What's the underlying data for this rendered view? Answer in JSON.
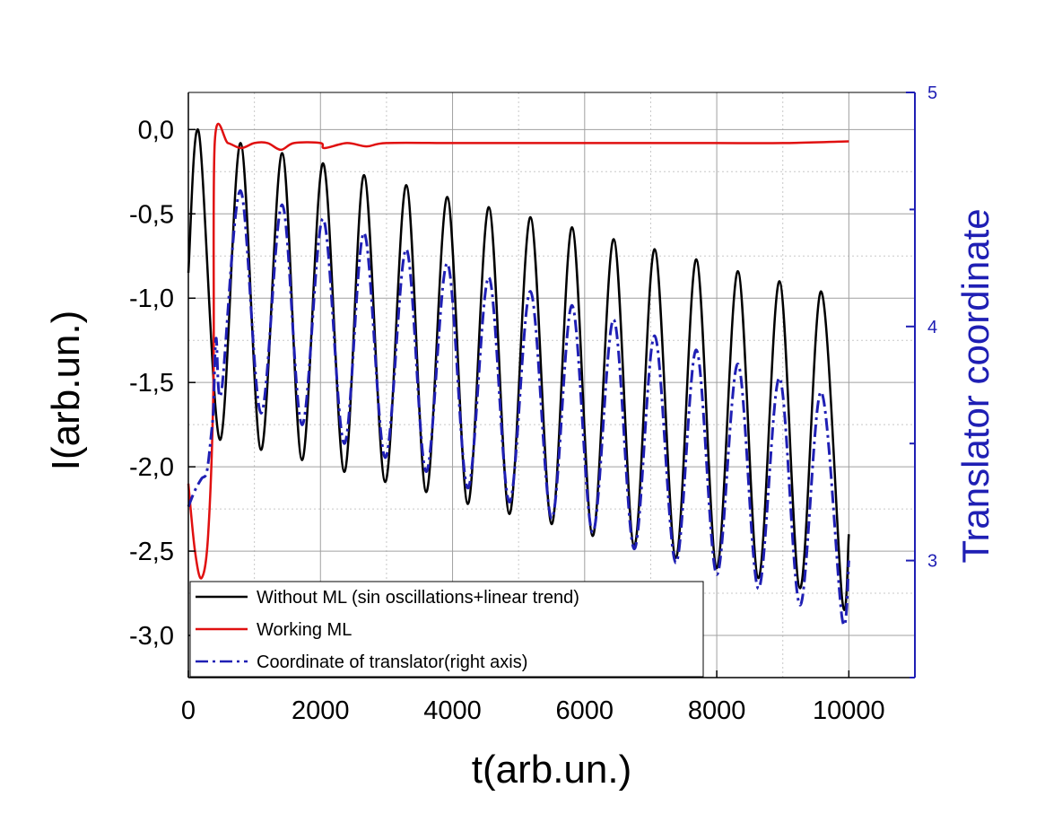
{
  "chart_data": {
    "type": "line",
    "title": "",
    "xlabel": "t(arb.un.)",
    "ylabel": "I(arb.un.)",
    "y2label": "Translator coordinate",
    "xlim": [
      0,
      11000
    ],
    "ylim": [
      -3.25,
      0.22
    ],
    "y2lim": [
      2.5,
      5.0
    ],
    "x_ticks": [
      "0",
      "2000",
      "4000",
      "6000",
      "8000",
      "10000"
    ],
    "x_tick_values": [
      0,
      2000,
      4000,
      6000,
      8000,
      10000
    ],
    "y_ticks": [
      "0,0",
      "-0,5",
      "-1,0",
      "-1,5",
      "-2,0",
      "-2,5",
      "-3,0"
    ],
    "y_tick_values": [
      0,
      -0.5,
      -1.0,
      -1.5,
      -2.0,
      -2.5,
      -3.0
    ],
    "y2_ticks": [
      "3",
      "4",
      "5"
    ],
    "y2_tick_values": [
      3,
      4,
      5
    ],
    "grid": true,
    "legend_position": "bottom-left",
    "colors": {
      "without_ml": "#000000",
      "working_ml": "#e01010",
      "translator": "#1f1fb4",
      "right_axis": "#1f1fb4"
    },
    "series": [
      {
        "name": "Without ML (sin oscillations+linear trend)",
        "axis": "left",
        "style": "solid",
        "color": "#000000",
        "x": [
          0,
          160,
          480,
          790,
          1100,
          1420,
          1720,
          2040,
          2360,
          2660,
          2980,
          3300,
          3600,
          3920,
          4230,
          4550,
          4860,
          5180,
          5500,
          5810,
          6120,
          6440,
          6750,
          7060,
          7380,
          7690,
          8000,
          8320,
          8630,
          8950,
          9260,
          9580,
          9900,
          10000
        ],
        "y": [
          -0.85,
          -0.02,
          -1.84,
          -0.08,
          -1.9,
          -0.14,
          -1.96,
          -0.2,
          -2.03,
          -0.27,
          -2.09,
          -0.33,
          -2.15,
          -0.4,
          -2.22,
          -0.46,
          -2.28,
          -0.52,
          -2.34,
          -0.58,
          -2.41,
          -0.65,
          -2.47,
          -0.71,
          -2.54,
          -0.77,
          -2.6,
          -0.84,
          -2.66,
          -0.9,
          -2.72,
          -0.96,
          -2.79,
          -2.4
        ]
      },
      {
        "name": "Working ML",
        "axis": "left",
        "style": "solid",
        "color": "#e01010",
        "x": [
          0,
          100,
          200,
          300,
          380,
          400,
          600,
          800,
          1000,
          1200,
          1400,
          1600,
          2000,
          2060,
          2400,
          2700,
          3000,
          4000,
          5000,
          6000,
          7000,
          8000,
          9000,
          10000
        ],
        "y": [
          -2.1,
          -2.5,
          -2.66,
          -2.4,
          -1.5,
          -0.07,
          -0.08,
          -0.11,
          -0.08,
          -0.08,
          -0.12,
          -0.08,
          -0.08,
          -0.11,
          -0.08,
          -0.1,
          -0.08,
          -0.08,
          -0.08,
          -0.08,
          -0.08,
          -0.08,
          -0.08,
          -0.07
        ]
      },
      {
        "name": "Coordinate of translator(right axis)",
        "axis": "right",
        "style": "dash-dot",
        "color": "#1f1fb4",
        "x": [
          0,
          100,
          200,
          280,
          350,
          380,
          420,
          500,
          790,
          1100,
          1420,
          1720,
          2040,
          2360,
          2660,
          2980,
          3300,
          3600,
          3920,
          4230,
          4550,
          4860,
          5180,
          5500,
          5810,
          6120,
          6440,
          6750,
          7060,
          7380,
          7690,
          8000,
          8320,
          8630,
          8950,
          9260,
          9580,
          9900,
          10000
        ],
        "y": [
          3.23,
          3.3,
          3.35,
          3.38,
          3.55,
          3.65,
          3.95,
          3.72,
          4.58,
          3.63,
          4.52,
          3.58,
          4.46,
          3.5,
          4.4,
          3.44,
          4.33,
          3.38,
          4.27,
          3.31,
          4.21,
          3.25,
          4.15,
          3.18,
          4.09,
          3.12,
          4.03,
          3.05,
          3.96,
          2.99,
          3.9,
          2.94,
          3.84,
          2.88,
          3.78,
          2.81,
          3.72,
          2.75,
          3.0
        ]
      }
    ]
  }
}
